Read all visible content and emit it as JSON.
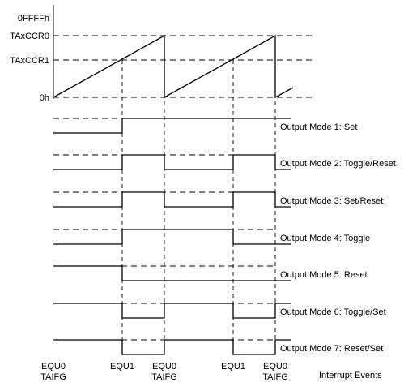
{
  "y_axis": {
    "labels": [
      "0FFFFh",
      "TAxCCR0",
      "TAxCCR1",
      "0h"
    ]
  },
  "output_modes": [
    {
      "label": "Output Mode 1: Set",
      "levels": [
        0,
        1,
        1,
        1,
        1,
        1
      ]
    },
    {
      "label": "Output Mode 2: Toggle/Reset",
      "levels": [
        0,
        1,
        0,
        1,
        0,
        0
      ]
    },
    {
      "label": "Output Mode 3: Set/Reset",
      "levels": [
        0,
        1,
        0,
        1,
        0,
        0
      ]
    },
    {
      "label": "Output Mode 4: Toggle",
      "levels": [
        0,
        1,
        1,
        0,
        0,
        0
      ]
    },
    {
      "label": "Output Mode 5: Reset",
      "levels": [
        1,
        0,
        0,
        0,
        0,
        0
      ]
    },
    {
      "label": "Output Mode 6: Toggle/Set",
      "levels": [
        1,
        0,
        1,
        0,
        1,
        1
      ]
    },
    {
      "label": "Output Mode 7: Reset/Set",
      "levels": [
        1,
        0,
        1,
        0,
        1,
        1
      ]
    }
  ],
  "events": [
    {
      "line1": "EQU0",
      "line2": "TAIFG"
    },
    {
      "line1": "EQU1",
      "line2": ""
    },
    {
      "line1": "EQU0",
      "line2": "TAIFG"
    },
    {
      "line1": "EQU1",
      "line2": ""
    },
    {
      "line1": "EQU0",
      "line2": "TAIFG"
    }
  ],
  "interrupt_events_label": "Interrupt Events"
}
